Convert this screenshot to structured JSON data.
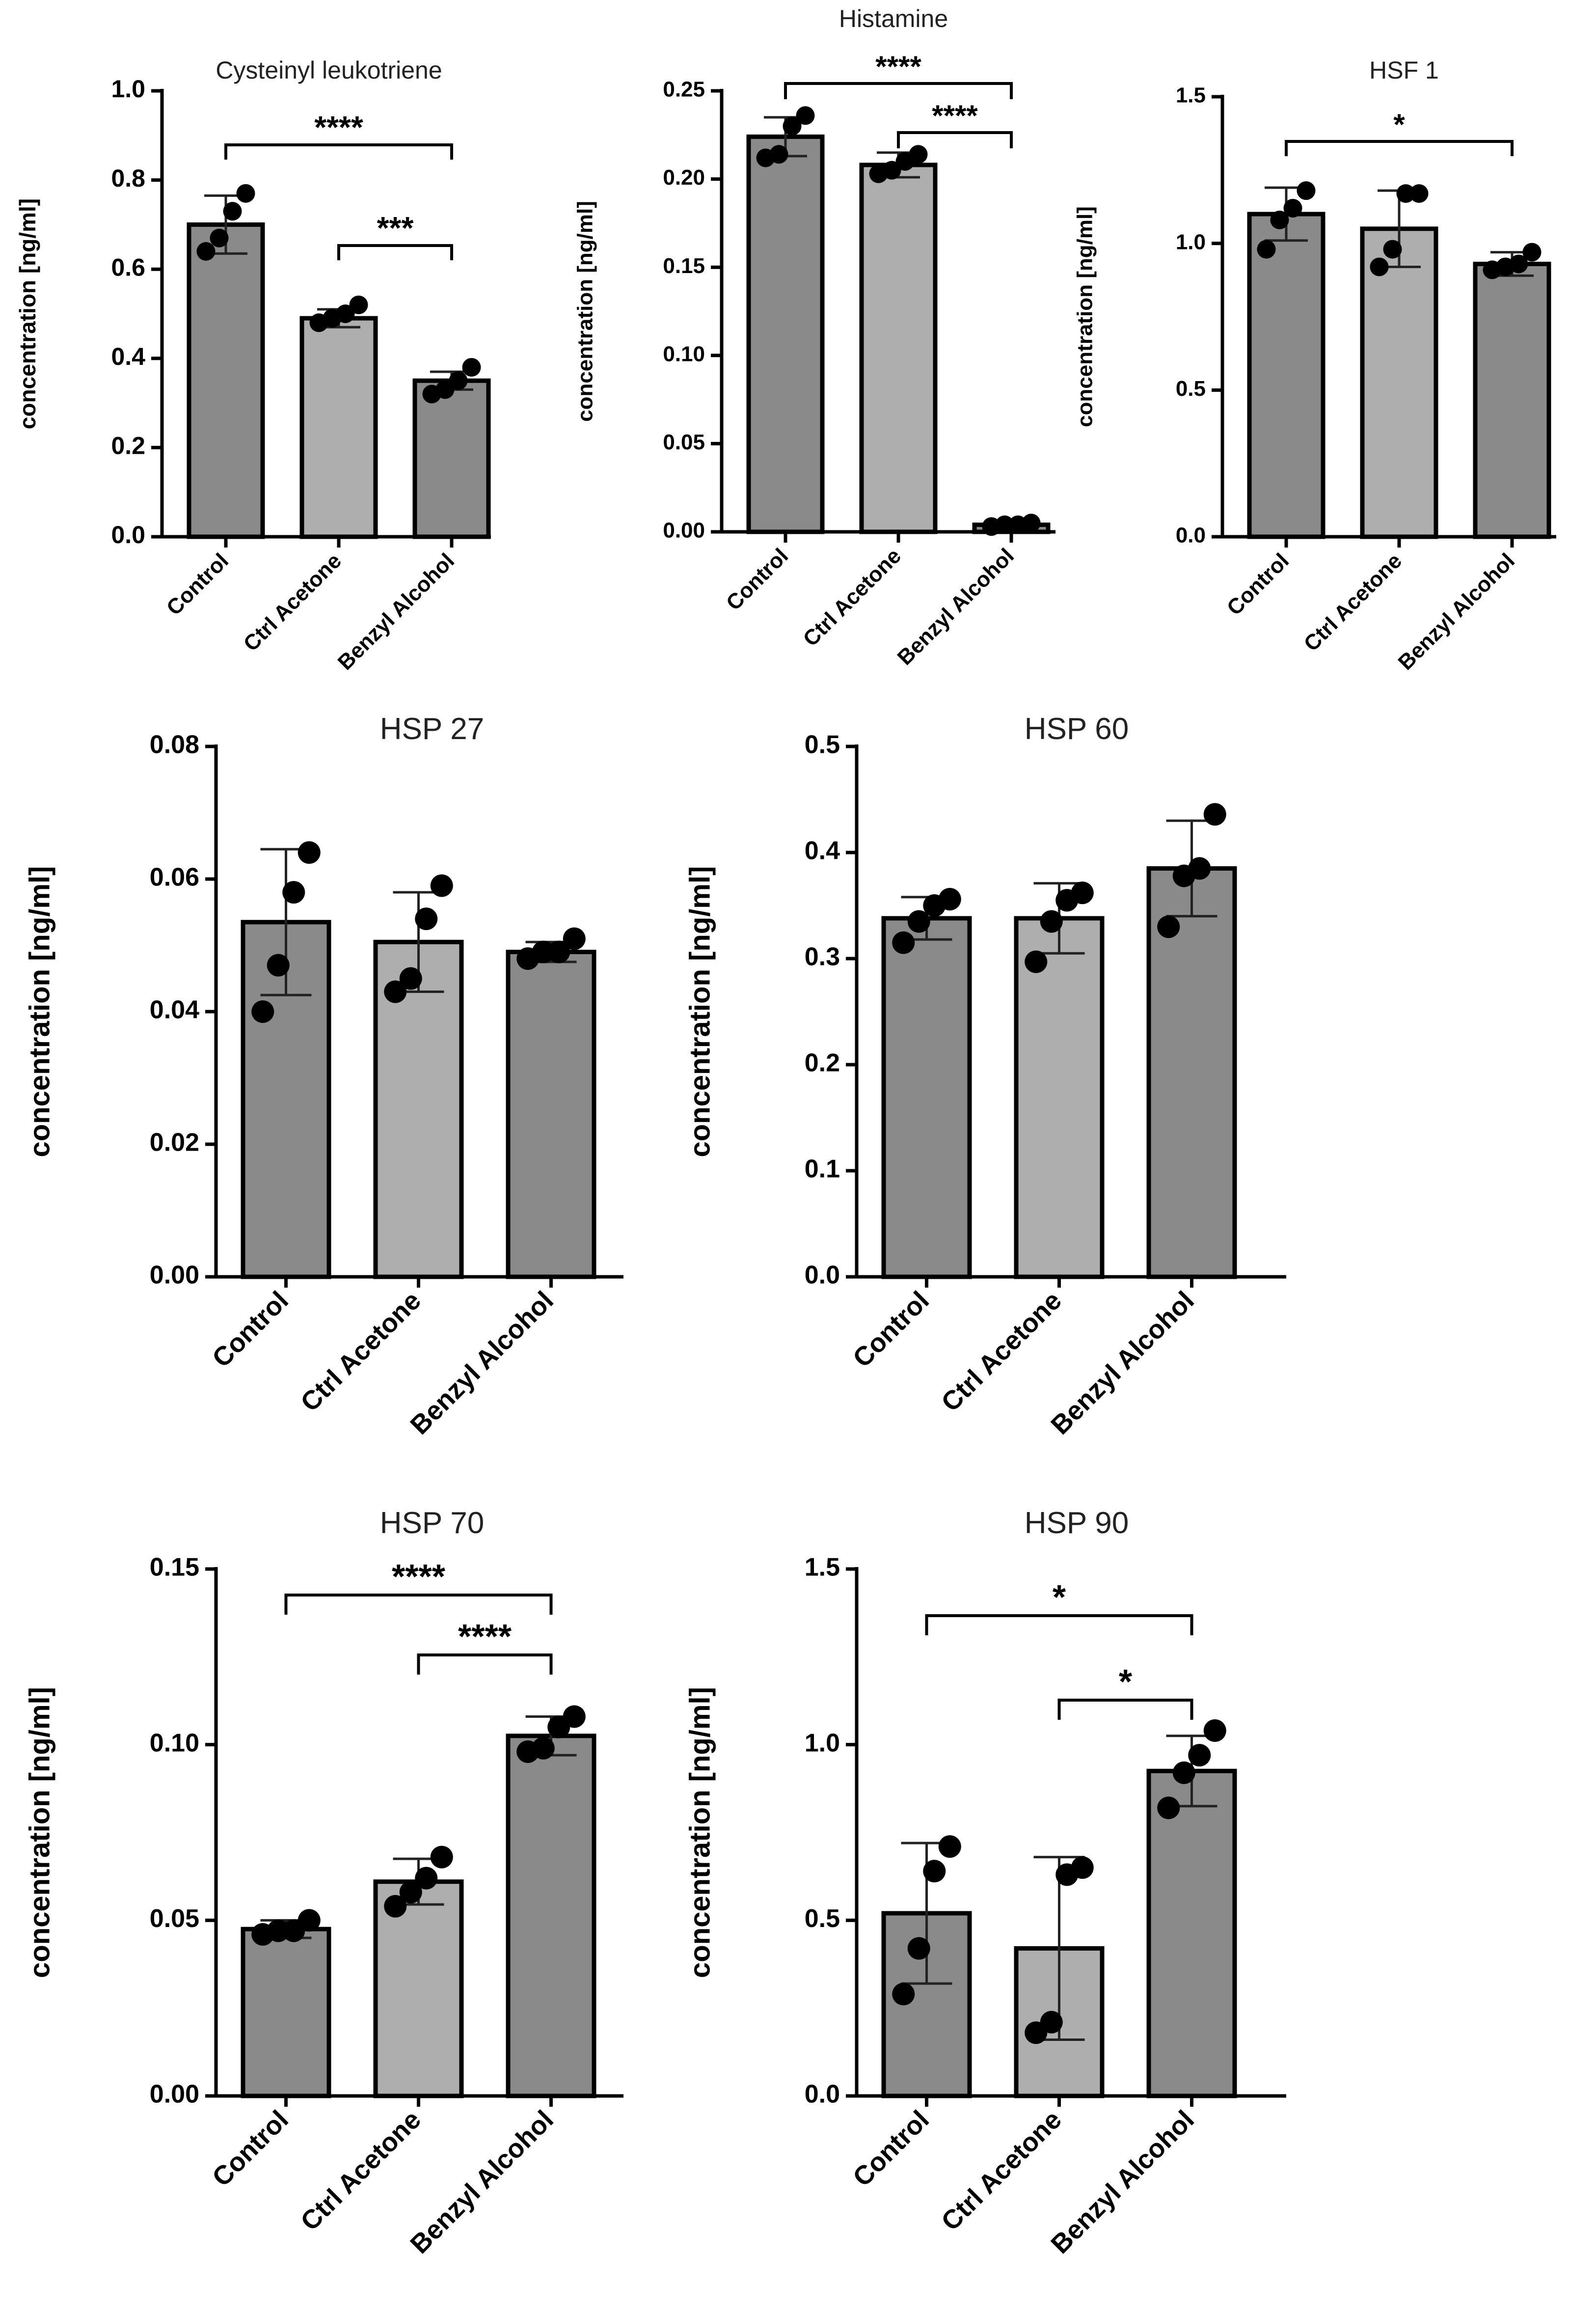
{
  "figure": {
    "colors": {
      "Control": "#8a8a8a",
      "Ctrl Acetone": "#aeaeae",
      "Benzyl Alcohol": "#8a8a8a"
    }
  },
  "chart_data": [
    {
      "type": "bar",
      "title": "Cysteinyl leukotriene",
      "xlabel": "",
      "ylabel": "concentration [ng/ml]",
      "categories": [
        "Control",
        "Ctrl Acetone",
        "Benzyl Alcohol"
      ],
      "values": [
        0.7,
        0.49,
        0.35
      ],
      "errors": [
        0.065,
        0.02,
        0.02
      ],
      "points": [
        [
          0.64,
          0.67,
          0.73,
          0.77
        ],
        [
          0.48,
          0.49,
          0.5,
          0.52
        ],
        [
          0.32,
          0.33,
          0.35,
          0.38
        ]
      ],
      "ylim": [
        0,
        1.0
      ],
      "yticks": [
        {
          "v": 0,
          "t": "0.0"
        },
        {
          "v": 0.2,
          "t": "0.2"
        },
        {
          "v": 0.4,
          "t": "0.4"
        },
        {
          "v": 0.6,
          "t": "0.6"
        },
        {
          "v": 0.8,
          "t": "0.8"
        },
        {
          "v": 1.0,
          "t": "1.0"
        }
      ],
      "significance": [
        {
          "from": 0,
          "to": 2,
          "label": "****"
        },
        {
          "from": 1,
          "to": 2,
          "label": "***"
        }
      ]
    },
    {
      "type": "bar",
      "title": "Histamine",
      "xlabel": "",
      "ylabel": "concentration [ng/ml]",
      "categories": [
        "Control",
        "Ctrl Acetone",
        "Benzyl Alcohol"
      ],
      "values": [
        0.224,
        0.208,
        0.004
      ],
      "errors": [
        0.011,
        0.007,
        0.001
      ],
      "points": [
        [
          0.212,
          0.214,
          0.23,
          0.236
        ],
        [
          0.203,
          0.205,
          0.21,
          0.214
        ],
        [
          0.003,
          0.004,
          0.004,
          0.005
        ]
      ],
      "ylim": [
        0,
        0.25
      ],
      "yticks": [
        {
          "v": 0,
          "t": "0.00"
        },
        {
          "v": 0.05,
          "t": "0.05"
        },
        {
          "v": 0.1,
          "t": "0.10"
        },
        {
          "v": 0.15,
          "t": "0.15"
        },
        {
          "v": 0.2,
          "t": "0.20"
        },
        {
          "v": 0.25,
          "t": "0.25"
        }
      ],
      "significance": [
        {
          "from": 0,
          "to": 2,
          "label": "****"
        },
        {
          "from": 1,
          "to": 2,
          "label": "****"
        }
      ]
    },
    {
      "type": "bar",
      "title": "HSF 1",
      "xlabel": "",
      "ylabel": "concentration [ng/ml]",
      "categories": [
        "Control",
        "Ctrl Acetone",
        "Benzyl Alcohol"
      ],
      "values": [
        1.1,
        1.05,
        0.93
      ],
      "errors": [
        0.09,
        0.13,
        0.04
      ],
      "points": [
        [
          0.98,
          1.08,
          1.12,
          1.18
        ],
        [
          0.92,
          0.98,
          1.17,
          1.17
        ],
        [
          0.91,
          0.92,
          0.93,
          0.97
        ]
      ],
      "ylim": [
        0,
        1.5
      ],
      "yticks": [
        {
          "v": 0,
          "t": "0.0"
        },
        {
          "v": 0.5,
          "t": "0.5"
        },
        {
          "v": 1.0,
          "t": "1.0"
        },
        {
          "v": 1.5,
          "t": "1.5"
        }
      ],
      "significance": [
        {
          "from": 0,
          "to": 2,
          "label": "*"
        }
      ]
    },
    {
      "type": "bar",
      "title": "HSP 27",
      "xlabel": "",
      "ylabel": "concentration [ng/ml]",
      "categories": [
        "Control",
        "Ctrl Acetone",
        "Benzyl Alcohol"
      ],
      "values": [
        0.0535,
        0.0505,
        0.049
      ],
      "errors": [
        0.011,
        0.0075,
        0.0015
      ],
      "points": [
        [
          0.04,
          0.047,
          0.058,
          0.064
        ],
        [
          0.043,
          0.045,
          0.054,
          0.059
        ],
        [
          0.048,
          0.049,
          0.049,
          0.051
        ]
      ],
      "ylim": [
        0,
        0.08
      ],
      "yticks": [
        {
          "v": 0,
          "t": "0.00"
        },
        {
          "v": 0.02,
          "t": "0.02"
        },
        {
          "v": 0.04,
          "t": "0.04"
        },
        {
          "v": 0.06,
          "t": "0.06"
        },
        {
          "v": 0.08,
          "t": "0.08"
        }
      ],
      "significance": []
    },
    {
      "type": "bar",
      "title": "HSP 60",
      "xlabel": "",
      "ylabel": "concentration [ng/ml]",
      "categories": [
        "Control",
        "Ctrl Acetone",
        "Benzyl Alcohol"
      ],
      "values": [
        0.338,
        0.338,
        0.385
      ],
      "errors": [
        0.02,
        0.033,
        0.045
      ],
      "points": [
        [
          0.315,
          0.335,
          0.35,
          0.356
        ],
        [
          0.297,
          0.335,
          0.355,
          0.362
        ],
        [
          0.33,
          0.378,
          0.385,
          0.436
        ]
      ],
      "ylim": [
        0,
        0.5
      ],
      "yticks": [
        {
          "v": 0,
          "t": "0.0"
        },
        {
          "v": 0.1,
          "t": "0.1"
        },
        {
          "v": 0.2,
          "t": "0.2"
        },
        {
          "v": 0.3,
          "t": "0.3"
        },
        {
          "v": 0.4,
          "t": "0.4"
        },
        {
          "v": 0.5,
          "t": "0.5"
        }
      ],
      "significance": []
    },
    {
      "type": "bar",
      "title": "HSP 70",
      "xlabel": "",
      "ylabel": "concentration [ng/ml]",
      "categories": [
        "Control",
        "Ctrl Acetone",
        "Benzyl Alcohol"
      ],
      "values": [
        0.0475,
        0.061,
        0.1025
      ],
      "errors": [
        0.0025,
        0.0065,
        0.0055
      ],
      "points": [
        [
          0.046,
          0.047,
          0.047,
          0.05
        ],
        [
          0.054,
          0.058,
          0.062,
          0.068
        ],
        [
          0.098,
          0.099,
          0.105,
          0.108
        ]
      ],
      "ylim": [
        0,
        0.15
      ],
      "yticks": [
        {
          "v": 0,
          "t": "0.00"
        },
        {
          "v": 0.05,
          "t": "0.05"
        },
        {
          "v": 0.1,
          "t": "0.10"
        },
        {
          "v": 0.15,
          "t": "0.15"
        }
      ],
      "significance": [
        {
          "from": 0,
          "to": 2,
          "label": "****"
        },
        {
          "from": 1,
          "to": 2,
          "label": "****"
        }
      ]
    },
    {
      "type": "bar",
      "title": "HSP 90",
      "xlabel": "",
      "ylabel": "concentration [ng/ml]",
      "categories": [
        "Control",
        "Ctrl Acetone",
        "Benzyl Alcohol"
      ],
      "values": [
        0.52,
        0.42,
        0.925
      ],
      "errors": [
        0.2,
        0.26,
        0.1
      ],
      "points": [
        [
          0.29,
          0.42,
          0.64,
          0.71
        ],
        [
          0.18,
          0.21,
          0.63,
          0.65
        ],
        [
          0.82,
          0.92,
          0.97,
          1.04
        ]
      ],
      "ylim": [
        0,
        1.5
      ],
      "yticks": [
        {
          "v": 0,
          "t": "0.0"
        },
        {
          "v": 0.5,
          "t": "0.5"
        },
        {
          "v": 1.0,
          "t": "1.0"
        },
        {
          "v": 1.5,
          "t": "1.5"
        }
      ],
      "significance": [
        {
          "from": 0,
          "to": 2,
          "label": "*"
        },
        {
          "from": 1,
          "to": 2,
          "label": "*"
        }
      ]
    }
  ]
}
